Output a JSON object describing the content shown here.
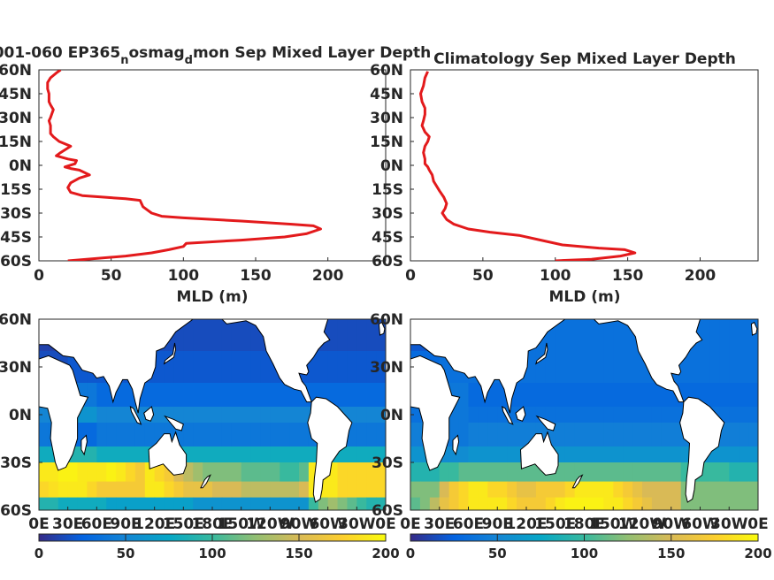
{
  "chart_data": [
    {
      "type": "line",
      "title": "001-060 EP365",
      "title_sub1": "n",
      "title_mid": "osmag",
      "title_sub2": "d",
      "title_end": "mon Sep Mixed Layer Depth",
      "xlabel": "MLD (m)",
      "xlim": [
        0,
        240
      ],
      "ylim": [
        -60,
        60
      ],
      "xticks": [
        "0",
        "50",
        "100",
        "150",
        "200"
      ],
      "yticks": [
        "60N",
        "45N",
        "30N",
        "15N",
        "0N",
        "15S",
        "30S",
        "45S",
        "60S"
      ],
      "color": "#e31a1c",
      "series": [
        {
          "name": "",
          "x": [
            20,
            60,
            78,
            90,
            100,
            102,
            140,
            170,
            185,
            195,
            190,
            175,
            140,
            100,
            85,
            78,
            75,
            72,
            70,
            60,
            45,
            30,
            22,
            20,
            22,
            28,
            35,
            28,
            22,
            18,
            25,
            26,
            20,
            12,
            15,
            22,
            14,
            10,
            8,
            8,
            7,
            8,
            10,
            8,
            7,
            7,
            6,
            6,
            8,
            12,
            15
          ],
          "y": [
            -60,
            -57,
            -55,
            -53,
            -51,
            -49,
            -47,
            -45,
            -43,
            -40,
            -38,
            -37,
            -35,
            -33,
            -32,
            -30,
            -28,
            -26,
            -22,
            -21,
            -20,
            -19,
            -17,
            -14,
            -11,
            -8,
            -6,
            -3,
            -2,
            -1,
            1,
            3,
            4,
            6,
            8,
            12,
            15,
            18,
            20,
            25,
            28,
            30,
            35,
            38,
            40,
            45,
            48,
            52,
            55,
            58,
            60
          ]
        }
      ]
    },
    {
      "type": "line",
      "title": "Climatology Sep Mixed Layer Depth",
      "xlabel": "MLD (m)",
      "xlim": [
        0,
        240
      ],
      "ylim": [
        -60,
        60
      ],
      "xticks": [
        "0",
        "50",
        "100",
        "150",
        "200"
      ],
      "yticks": [
        "60N",
        "45N",
        "30N",
        "15N",
        "0N",
        "15S",
        "30S",
        "45S",
        "60S"
      ],
      "color": "#e31a1c",
      "series": [
        {
          "name": "",
          "x": [
            100,
            125,
            145,
            155,
            148,
            130,
            105,
            90,
            75,
            55,
            40,
            30,
            25,
            22,
            24,
            25,
            23,
            20,
            18,
            16,
            15,
            13,
            12,
            10,
            10,
            9,
            10,
            12,
            13,
            10,
            8,
            9,
            10,
            10,
            8,
            7,
            9,
            10,
            12
          ],
          "y": [
            -60,
            -59,
            -57,
            -55,
            -53,
            -52,
            -50,
            -47,
            -44,
            -42,
            -40,
            -37,
            -34,
            -30,
            -27,
            -24,
            -20,
            -16,
            -13,
            -10,
            -6,
            -3,
            -1,
            1,
            4,
            8,
            12,
            15,
            18,
            21,
            25,
            28,
            32,
            36,
            40,
            45,
            50,
            55,
            59
          ]
        }
      ]
    },
    {
      "type": "heatmap",
      "title": "",
      "colormap": "parula",
      "clim": [
        0,
        200
      ],
      "xticks": [
        "0E",
        "30E",
        "60E",
        "90E",
        "120E",
        "150E",
        "180E",
        "150W",
        "120W",
        "90W",
        "60W",
        "30W",
        "0E"
      ],
      "yticks": [
        "60N",
        "30N",
        "0N",
        "30S",
        "60S"
      ],
      "colorbar_ticks": [
        "0",
        "50",
        "100",
        "150",
        "200"
      ],
      "lon_step_deg": 10,
      "lat_bands": [
        {
          "lat_top": 60,
          "lat_bottom": 40,
          "values": [
            10,
            10,
            12,
            12,
            12,
            12,
            12,
            12,
            12,
            12,
            15,
            15,
            15,
            15,
            15,
            15,
            15,
            15,
            15,
            15,
            15,
            15,
            15,
            15,
            15,
            15,
            15,
            15,
            15,
            15,
            15,
            15,
            15,
            15,
            15,
            15
          ]
        },
        {
          "lat_top": 40,
          "lat_bottom": 20,
          "values": [
            15,
            15,
            15,
            20,
            20,
            20,
            20,
            20,
            20,
            20,
            20,
            20,
            20,
            20,
            20,
            20,
            20,
            20,
            20,
            20,
            20,
            20,
            20,
            20,
            20,
            20,
            20,
            20,
            20,
            20,
            20,
            20,
            20,
            20,
            20,
            20
          ]
        },
        {
          "lat_top": 20,
          "lat_bottom": 5,
          "values": [
            30,
            30,
            30,
            40,
            40,
            40,
            30,
            30,
            30,
            30,
            30,
            30,
            30,
            30,
            30,
            30,
            30,
            30,
            30,
            30,
            30,
            30,
            30,
            30,
            30,
            30,
            30,
            30,
            30,
            30,
            30,
            30,
            30,
            30,
            30,
            30
          ]
        },
        {
          "lat_top": 5,
          "lat_bottom": -5,
          "values": [
            50,
            50,
            50,
            60,
            60,
            60,
            50,
            50,
            50,
            50,
            50,
            50,
            50,
            50,
            50,
            50,
            50,
            50,
            50,
            50,
            50,
            50,
            50,
            50,
            50,
            50,
            50,
            50,
            50,
            50,
            50,
            50,
            50,
            50,
            50,
            50
          ]
        },
        {
          "lat_top": -5,
          "lat_bottom": -20,
          "values": [
            40,
            40,
            40,
            30,
            30,
            30,
            40,
            40,
            40,
            40,
            40,
            40,
            40,
            40,
            40,
            40,
            40,
            40,
            40,
            40,
            40,
            40,
            40,
            40,
            40,
            40,
            40,
            40,
            40,
            40,
            40,
            40,
            40,
            40,
            40,
            40
          ]
        },
        {
          "lat_top": -20,
          "lat_bottom": -30,
          "values": [
            80,
            80,
            80,
            90,
            90,
            90,
            80,
            80,
            80,
            80,
            80,
            80,
            80,
            80,
            80,
            80,
            80,
            80,
            80,
            80,
            80,
            80,
            80,
            80,
            80,
            80,
            80,
            80,
            80,
            80,
            80,
            80,
            80,
            80,
            80,
            80
          ]
        },
        {
          "lat_top": -30,
          "lat_bottom": -42,
          "values": [
            190,
            190,
            195,
            195,
            190,
            190,
            190,
            195,
            190,
            180,
            170,
            190,
            180,
            170,
            150,
            140,
            130,
            120,
            120,
            120,
            120,
            110,
            110,
            110,
            110,
            100,
            100,
            110,
            190,
            190,
            190,
            180,
            180,
            180,
            180,
            180
          ]
        },
        {
          "lat_top": -42,
          "lat_bottom": -52,
          "values": [
            180,
            185,
            190,
            190,
            190,
            180,
            170,
            170,
            170,
            170,
            170,
            190,
            190,
            180,
            170,
            160,
            160,
            160,
            150,
            150,
            150,
            140,
            140,
            140,
            140,
            140,
            140,
            150,
            190,
            190,
            190,
            180,
            180,
            180,
            180,
            180
          ]
        },
        {
          "lat_top": -52,
          "lat_bottom": -60,
          "values": [
            90,
            90,
            80,
            80,
            80,
            80,
            80,
            70,
            70,
            70,
            70,
            70,
            70,
            70,
            70,
            70,
            60,
            60,
            60,
            60,
            60,
            60,
            60,
            60,
            60,
            60,
            60,
            60,
            100,
            120,
            130,
            120,
            110,
            100,
            90,
            90
          ]
        }
      ]
    },
    {
      "type": "heatmap",
      "title": "",
      "colormap": "parula",
      "clim": [
        0,
        200
      ],
      "xticks": [
        "0E",
        "30E",
        "60E",
        "90E",
        "120E",
        "150E",
        "180E",
        "150W",
        "120W",
        "90W",
        "60W",
        "30W",
        "0E"
      ],
      "yticks": [
        "60N",
        "30N",
        "0N",
        "30S",
        "60S"
      ],
      "colorbar_ticks": [
        "0",
        "50",
        "100",
        "150",
        "200"
      ],
      "lon_step_deg": 10,
      "lat_bands": [
        {
          "lat_top": 60,
          "lat_bottom": 40,
          "values": [
            20,
            20,
            20,
            20,
            25,
            25,
            30,
            30,
            30,
            35,
            35,
            35,
            35,
            35,
            35,
            35,
            35,
            35,
            35,
            35,
            35,
            35,
            35,
            35,
            35,
            35,
            35,
            35,
            35,
            35,
            35,
            35,
            35,
            35,
            35,
            35
          ]
        },
        {
          "lat_top": 40,
          "lat_bottom": 20,
          "values": [
            30,
            30,
            30,
            35,
            35,
            35,
            35,
            35,
            35,
            35,
            35,
            35,
            35,
            35,
            35,
            35,
            35,
            35,
            35,
            35,
            35,
            35,
            35,
            35,
            35,
            35,
            35,
            35,
            35,
            35,
            35,
            35,
            35,
            35,
            35,
            35
          ]
        },
        {
          "lat_top": 20,
          "lat_bottom": 5,
          "values": [
            35,
            35,
            35,
            40,
            40,
            40,
            30,
            30,
            30,
            30,
            30,
            30,
            30,
            30,
            30,
            30,
            30,
            30,
            30,
            30,
            30,
            30,
            30,
            30,
            30,
            30,
            30,
            30,
            30,
            30,
            30,
            30,
            30,
            30,
            30,
            30
          ]
        },
        {
          "lat_top": 5,
          "lat_bottom": -5,
          "values": [
            35,
            35,
            35,
            40,
            40,
            40,
            35,
            35,
            35,
            35,
            35,
            35,
            35,
            35,
            35,
            35,
            35,
            35,
            35,
            35,
            35,
            35,
            35,
            35,
            35,
            35,
            35,
            35,
            35,
            35,
            35,
            35,
            35,
            35,
            35,
            35
          ]
        },
        {
          "lat_top": -5,
          "lat_bottom": -20,
          "values": [
            45,
            45,
            45,
            40,
            40,
            40,
            45,
            45,
            45,
            45,
            45,
            45,
            45,
            45,
            45,
            45,
            45,
            45,
            45,
            45,
            45,
            45,
            45,
            45,
            45,
            45,
            45,
            45,
            45,
            45,
            45,
            45,
            45,
            45,
            45,
            45
          ]
        },
        {
          "lat_top": -20,
          "lat_bottom": -30,
          "values": [
            60,
            60,
            60,
            55,
            55,
            55,
            60,
            60,
            60,
            60,
            60,
            60,
            60,
            60,
            60,
            60,
            60,
            60,
            60,
            60,
            60,
            60,
            60,
            60,
            60,
            60,
            60,
            60,
            60,
            60,
            60,
            60,
            60,
            60,
            60,
            60
          ]
        },
        {
          "lat_top": -30,
          "lat_bottom": -42,
          "values": [
            90,
            90,
            90,
            100,
            100,
            110,
            110,
            110,
            110,
            110,
            110,
            110,
            110,
            110,
            110,
            110,
            110,
            110,
            110,
            110,
            110,
            110,
            110,
            110,
            110,
            110,
            110,
            110,
            100,
            100,
            100,
            100,
            100,
            90,
            90,
            90
          ]
        },
        {
          "lat_top": -42,
          "lat_bottom": -52,
          "values": [
            120,
            120,
            120,
            150,
            170,
            180,
            190,
            190,
            180,
            180,
            170,
            160,
            160,
            170,
            170,
            170,
            180,
            190,
            190,
            190,
            190,
            180,
            170,
            160,
            150,
            150,
            150,
            150,
            120,
            120,
            120,
            120,
            120,
            120,
            120,
            120
          ]
        },
        {
          "lat_top": -52,
          "lat_bottom": -60,
          "values": [
            110,
            120,
            140,
            160,
            170,
            180,
            190,
            190,
            190,
            190,
            180,
            170,
            170,
            170,
            180,
            190,
            195,
            195,
            195,
            195,
            190,
            190,
            180,
            170,
            160,
            150,
            150,
            150,
            120,
            120,
            120,
            120,
            120,
            120,
            120,
            120
          ]
        }
      ]
    }
  ]
}
